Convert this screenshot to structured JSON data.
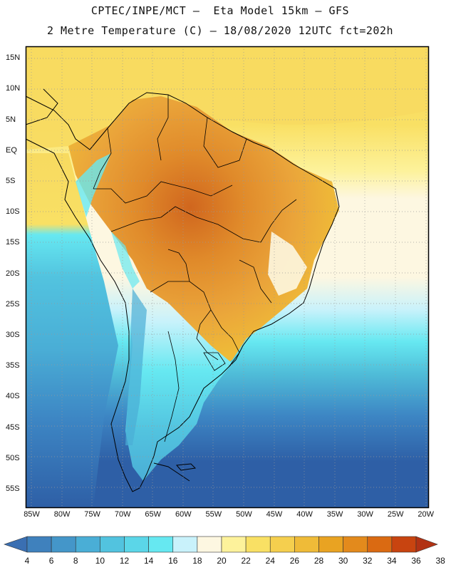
{
  "header": {
    "line1": "CPTEC/INPE/MCT –  Eta Model 15km – GFS",
    "line2": "2 Metre Temperature (C) – 18/08/2020 12UTC fct=202h"
  },
  "axes": {
    "lat_labels": [
      "15N",
      "10N",
      "5N",
      "EQ",
      "5S",
      "10S",
      "15S",
      "20S",
      "25S",
      "30S",
      "35S",
      "40S",
      "45S",
      "50S",
      "55S"
    ],
    "lon_labels": [
      "85W",
      "80W",
      "75W",
      "70W",
      "65W",
      "60W",
      "55W",
      "50W",
      "45W",
      "40W",
      "35W",
      "30W",
      "25W",
      "20W"
    ],
    "lat_range": [
      17,
      -58
    ],
    "lon_range": [
      -86,
      -19.5
    ]
  },
  "colorbar": {
    "labels": [
      "4",
      "6",
      "8",
      "10",
      "12",
      "14",
      "16",
      "18",
      "20",
      "22",
      "24",
      "26",
      "28",
      "30",
      "32",
      "34",
      "36",
      "38"
    ],
    "colors": [
      "#3a6fb2",
      "#3f81bd",
      "#4496c9",
      "#4aaed6",
      "#52c3df",
      "#5bd6e8",
      "#66e8f1",
      "#c9f2fb",
      "#fdf7e1",
      "#fdf29b",
      "#f9e064",
      "#f5cf4e",
      "#efbb38",
      "#e9a322",
      "#e38a1c",
      "#da6a12",
      "#c84410",
      "#b23214"
    ]
  },
  "map_colors": {
    "ocean_deep": "#2e5fa6",
    "ocean_mid": "#3d86c4",
    "ocean_teal": "#4fbcd8",
    "ocean_light": "#7fdcf0",
    "warm_band": "#fdf29b",
    "tropics": "#f7da60",
    "land_hot": "#eaa43a",
    "land_hotter": "#e08a2a",
    "land_hottest": "#d0661e",
    "coast": "#000000"
  }
}
